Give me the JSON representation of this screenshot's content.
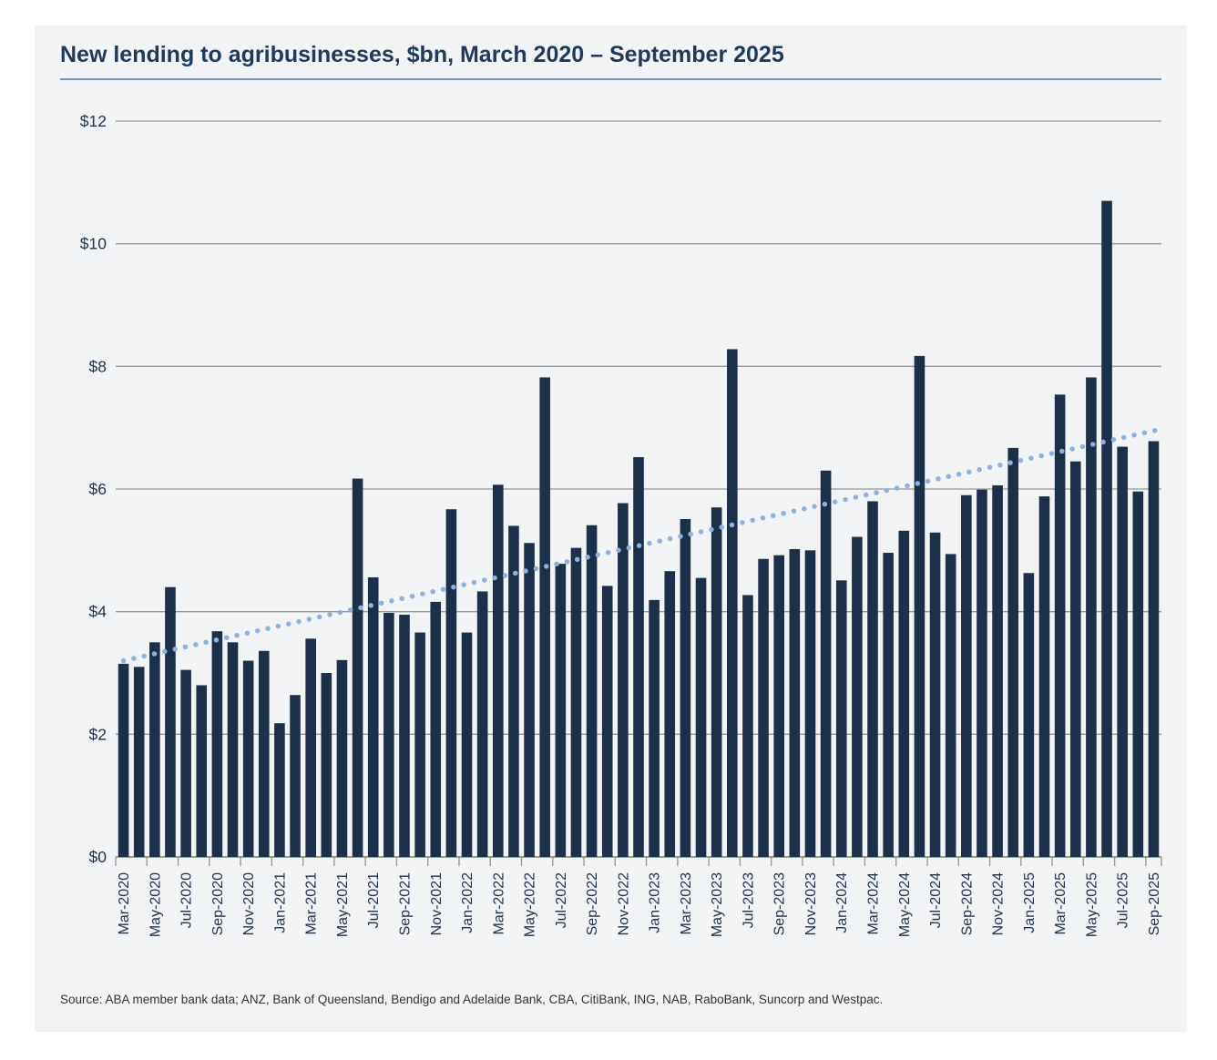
{
  "page": {
    "background_color": "#ffffff",
    "card_background_color": "#f2f3f4"
  },
  "header": {
    "title": "New lending to agribusinesses, $bn, March 2020 – September 2025",
    "title_color": "#1f3a5c",
    "underline_color": "#6e94bf"
  },
  "footer": {
    "source": "Source: ABA member bank data; ANZ, Bank of Queensland, Bendigo and Adelaide Bank, CBA, CitiBank, ING, NAB, RaboBank, Suncorp and Westpac."
  },
  "chart_data": {
    "type": "bar",
    "title": "New lending to agribusinesses, $bn, March 2020 – September 2025",
    "categories": [
      "Mar-2020",
      "Apr-2020",
      "May-2020",
      "Jun-2020",
      "Jul-2020",
      "Aug-2020",
      "Sep-2020",
      "Oct-2020",
      "Nov-2020",
      "Dec-2020",
      "Jan-2021",
      "Feb-2021",
      "Mar-2021",
      "Apr-2021",
      "May-2021",
      "Jun-2021",
      "Jul-2021",
      "Aug-2021",
      "Sep-2021",
      "Oct-2021",
      "Nov-2021",
      "Dec-2021",
      "Jan-2022",
      "Feb-2022",
      "Mar-2022",
      "Apr-2022",
      "May-2022",
      "Jun-2022",
      "Jul-2022",
      "Aug-2022",
      "Sep-2022",
      "Oct-2022",
      "Nov-2022",
      "Dec-2022",
      "Jan-2023",
      "Feb-2023",
      "Mar-2023",
      "Apr-2023",
      "May-2023",
      "Jun-2023",
      "Jul-2023",
      "Aug-2023",
      "Sep-2023",
      "Oct-2023",
      "Nov-2023",
      "Dec-2023",
      "Jan-2024",
      "Feb-2024",
      "Mar-2024",
      "Apr-2024",
      "May-2024",
      "Jun-2024",
      "Jul-2024",
      "Aug-2024",
      "Sep-2024",
      "Oct-2024",
      "Nov-2024",
      "Dec-2024",
      "Jan-2025",
      "Feb-2025",
      "Mar-2025",
      "Apr-2025",
      "May-2025",
      "Jun-2025",
      "Jul-2025",
      "Aug-2025",
      "Sep-2025"
    ],
    "values": [
      3.15,
      3.1,
      3.5,
      4.4,
      3.05,
      2.8,
      3.68,
      3.5,
      3.2,
      3.36,
      2.18,
      2.64,
      3.56,
      3.0,
      3.21,
      6.17,
      4.56,
      3.98,
      3.95,
      3.66,
      4.16,
      5.67,
      3.66,
      4.33,
      6.07,
      5.4,
      5.12,
      7.82,
      4.78,
      5.04,
      5.41,
      4.42,
      5.77,
      6.52,
      4.19,
      4.66,
      5.51,
      4.55,
      5.7,
      8.28,
      4.27,
      4.86,
      4.92,
      5.02,
      5.0,
      6.3,
      4.51,
      5.22,
      5.8,
      4.96,
      5.32,
      8.17,
      5.29,
      4.94,
      5.9,
      5.99,
      6.06,
      6.67,
      4.63,
      5.88,
      7.54,
      6.45,
      7.82,
      10.7,
      6.69,
      5.96,
      6.78
    ],
    "x_tick_labels": [
      "Mar-2020",
      "May-2020",
      "Jul-2020",
      "Sep-2020",
      "Nov-2020",
      "Jan-2021",
      "Mar-2021",
      "May-2021",
      "Jul-2021",
      "Sep-2021",
      "Nov-2021",
      "Jan-2022",
      "Mar-2022",
      "May-2022",
      "Jul-2022",
      "Sep-2022",
      "Nov-2022",
      "Jan-2023",
      "Mar-2023",
      "May-2023",
      "Jul-2023",
      "Sep-2023",
      "Nov-2023",
      "Jan-2024",
      "Mar-2024",
      "May-2024",
      "Jul-2024",
      "Sep-2024",
      "Nov-2024",
      "Jan-2025",
      "Mar-2025",
      "May-2025",
      "Jul-2025",
      "Sep-2025"
    ],
    "y_tick_labels": [
      "$0",
      "$2",
      "$4",
      "$6",
      "$8",
      "$10",
      "$12"
    ],
    "y_tick_values": [
      0,
      2,
      4,
      6,
      8,
      10,
      12
    ],
    "ylim": [
      0,
      12
    ],
    "xlabel": "",
    "ylabel": "",
    "grid": true,
    "legend": false,
    "bar_color": "#1d3049",
    "grid_color": "#999999",
    "axis_color": "#999999",
    "tick_label_color": "#22344c",
    "trend_line": {
      "type": "linear",
      "style": "dotted",
      "color": "#8eb1e0",
      "start_value": 3.2,
      "end_value": 6.97
    }
  }
}
